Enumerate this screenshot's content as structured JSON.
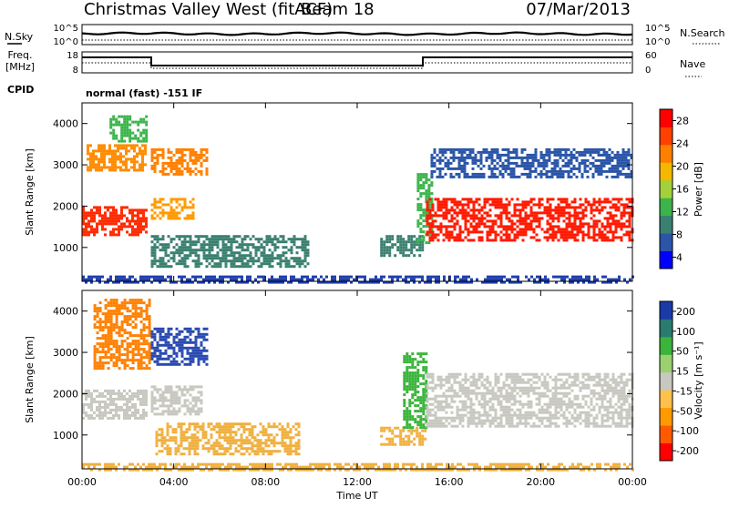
{
  "header": {
    "station": "Christmas Valley West (fitACF)",
    "beam": "Beam 18",
    "date": "07/Mar/2013"
  },
  "top_panels": {
    "nsky_label": "N.Sky",
    "nsearch_label": "N.Search",
    "noise_ticks": [
      "10^5",
      "10^0"
    ],
    "noise_right_ticks": [
      "10^5",
      "10^0"
    ],
    "freq_label": "Freq.",
    "freq_unit": "[MHz]",
    "freq_ticks": [
      "18",
      "8"
    ],
    "nave_label": "Nave",
    "nave_ticks": [
      "60",
      "0"
    ],
    "cpid_label": "CPID",
    "cpid_text": "normal (fast) -151 IF"
  },
  "chart_data": [
    {
      "type": "heatmap",
      "panel": "power",
      "ylabel": "Slant Range [km]",
      "xlabel": "",
      "xlim": [
        "00:00",
        "24:00"
      ],
      "ylim": [
        180,
        4500
      ],
      "y_ticks": [
        "4000",
        "3000",
        "2000",
        "1000"
      ],
      "x_ticks": [
        "00:00",
        "04:00",
        "08:00",
        "12:00",
        "16:00",
        "20:00",
        "00:00"
      ],
      "colorbar": {
        "label": "Power [dB]",
        "ticks": [
          "28",
          "24",
          "20",
          "16",
          "12",
          "8",
          "4"
        ],
        "colors": [
          "#0000ff",
          "#2a55a8",
          "#3a8070",
          "#3cb44b",
          "#a3d13c",
          "#f5b800",
          "#ff8000",
          "#ff4000",
          "#ff0000"
        ]
      },
      "regions": [
        {
          "t0": 0.0,
          "t1": 2.8,
          "r0": 1300,
          "r1": 2000,
          "color": "#ff2a00"
        },
        {
          "t0": 0.2,
          "t1": 2.8,
          "r0": 2900,
          "r1": 3500,
          "color": "#ff8c00"
        },
        {
          "t0": 1.2,
          "t1": 2.8,
          "r0": 3600,
          "r1": 4200,
          "color": "#3cb44b"
        },
        {
          "t0": 3.0,
          "t1": 5.5,
          "r0": 2800,
          "r1": 3400,
          "color": "#ff8000"
        },
        {
          "t0": 3.0,
          "t1": 4.8,
          "r0": 1700,
          "r1": 2200,
          "color": "#ff9a00"
        },
        {
          "t0": 3.0,
          "t1": 9.8,
          "r0": 550,
          "r1": 1300,
          "color": "#3a8070"
        },
        {
          "t0": 13.0,
          "t1": 14.8,
          "r0": 800,
          "r1": 1300,
          "color": "#3a8070"
        },
        {
          "t0": 14.6,
          "t1": 15.2,
          "r0": 1100,
          "r1": 2800,
          "color": "#3cb44b"
        },
        {
          "t0": 15.0,
          "t1": 24.0,
          "r0": 1200,
          "r1": 2200,
          "color": "#ff1a00"
        },
        {
          "t0": 15.2,
          "t1": 24.0,
          "r0": 2700,
          "r1": 3400,
          "color": "#2a55a8"
        },
        {
          "t0": 0.0,
          "t1": 24.0,
          "r0": 180,
          "r1": 320,
          "color": "#1f3fae"
        }
      ]
    },
    {
      "type": "heatmap",
      "panel": "velocity",
      "ylabel": "Slant Range [km]",
      "xlabel": "Time UT",
      "xlim": [
        "00:00",
        "24:00"
      ],
      "ylim": [
        180,
        4500
      ],
      "y_ticks": [
        "4000",
        "3000",
        "2000",
        "1000"
      ],
      "x_ticks": [
        "00:00",
        "04:00",
        "08:00",
        "12:00",
        "16:00",
        "20:00",
        "00:00"
      ],
      "colorbar": {
        "label": "Velocity [m s⁻¹]",
        "ticks": [
          "200",
          "100",
          "50",
          "15",
          "-15",
          "-50",
          "-100",
          "-200"
        ],
        "colors": [
          "#ff0000",
          "#ff5a00",
          "#ff9a00",
          "#ffc04c",
          "#c8c8c0",
          "#9ad070",
          "#3ab43a",
          "#2a7a70",
          "#1a3aa8"
        ]
      },
      "regions": [
        {
          "t0": 0.0,
          "t1": 2.8,
          "r0": 1400,
          "r1": 2100,
          "color": "#c8c8c0"
        },
        {
          "t0": 0.5,
          "t1": 3.0,
          "r0": 2600,
          "r1": 4300,
          "color": "#ff8000"
        },
        {
          "t0": 3.0,
          "t1": 5.5,
          "r0": 2700,
          "r1": 3600,
          "color": "#2a4ab0"
        },
        {
          "t0": 3.0,
          "t1": 5.2,
          "r0": 1500,
          "r1": 2200,
          "color": "#c8c8c0"
        },
        {
          "t0": 3.2,
          "t1": 9.5,
          "r0": 550,
          "r1": 1300,
          "color": "#f0b040"
        },
        {
          "t0": 13.0,
          "t1": 15.0,
          "r0": 800,
          "r1": 1200,
          "color": "#f0b040"
        },
        {
          "t0": 14.0,
          "t1": 15.0,
          "r0": 1200,
          "r1": 3000,
          "color": "#3ab43a"
        },
        {
          "t0": 15.0,
          "t1": 24.0,
          "r0": 1200,
          "r1": 2500,
          "color": "#c8c8c0"
        },
        {
          "t0": 0.0,
          "t1": 24.0,
          "r0": 180,
          "r1": 320,
          "color": "#f0b040"
        }
      ]
    }
  ]
}
